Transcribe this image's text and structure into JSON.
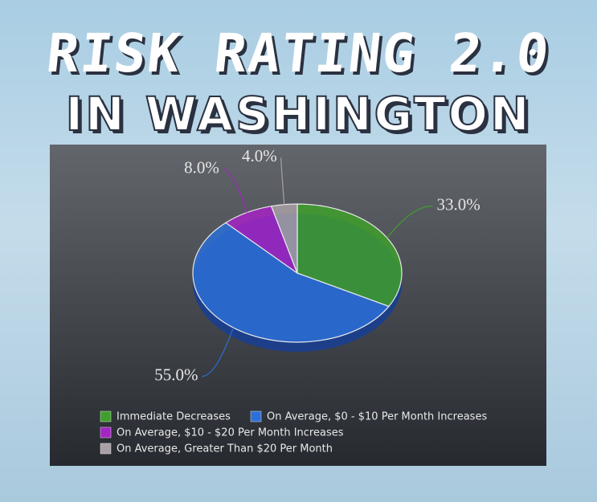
{
  "header": {
    "title": "RISK RATING 2.0",
    "subtitle": "IN WASHINGTON"
  },
  "chart_data": {
    "type": "pie",
    "categories": [
      "Immediate Decreases",
      "On Average, $0 - $10 Per Month Increases",
      "On Average, $10 - $20 Per Month Increases",
      "On Average, Greater Than $20 Per Month"
    ],
    "values": [
      33,
      55,
      8,
      4
    ],
    "value_labels": [
      "33.0%",
      "55.0%",
      "8.0%",
      "4.0%"
    ],
    "colors": [
      "#3f9f2c",
      "#2c6fd6",
      "#a424c4",
      "#a8a0a6"
    ]
  }
}
